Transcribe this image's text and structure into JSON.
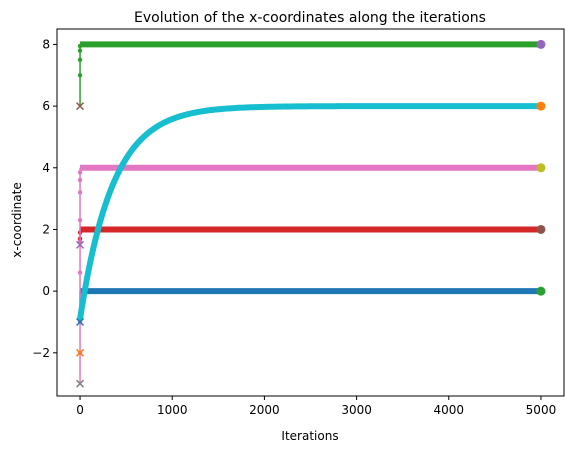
{
  "chart_data": {
    "type": "line",
    "title": "Evolution of the x-coordinates along the iterations",
    "xlabel": "Iterations",
    "ylabel": "x-coordinate",
    "xlim": [
      -250,
      5250
    ],
    "ylim": [
      -3.4,
      8.5
    ],
    "xticks": [
      0,
      1000,
      2000,
      3000,
      4000,
      5000
    ],
    "yticks": [
      -2,
      0,
      2,
      4,
      6,
      8
    ],
    "xtick_labels": [
      "0",
      "1000",
      "2000",
      "3000",
      "4000",
      "5000"
    ],
    "ytick_labels": [
      "−2",
      "0",
      "2",
      "4",
      "6",
      "8"
    ],
    "grid": false,
    "legend": false,
    "series": [
      {
        "color": "#1f77b4",
        "start": -1.0,
        "jump_to": 0.0,
        "final": 0.0,
        "end_color": "#2ca02c"
      },
      {
        "color": "#d62728",
        "start": 1.5,
        "jump_to": 2.0,
        "final": 2.0,
        "end_color": "#8c564b"
      },
      {
        "color": "#e377c2",
        "start": -3.0,
        "jump_to": 4.0,
        "final": 4.0,
        "end_color": "#bcbd22"
      },
      {
        "color": "#2ca02c",
        "start": 6.0,
        "jump_to": 8.0,
        "final": 8.0,
        "end_color": "#9467bd"
      },
      {
        "color": "#17becf",
        "start": -0.9,
        "asymptote": 6.0,
        "rate": 0.0028,
        "final": 6.0,
        "end_color": "#ff7f0e"
      }
    ],
    "start_markers": [
      {
        "y": 6.0,
        "color": "#8c564b"
      },
      {
        "y": 1.5,
        "color": "#9467bd"
      },
      {
        "y": -1.0,
        "color": "#1f77b4"
      },
      {
        "y": -2.0,
        "color": "#ff7f0e"
      },
      {
        "y": -3.0,
        "color": "#7f7f7f"
      }
    ],
    "transient_dots": [
      {
        "color": "#2ca02c",
        "ys": [
          7.0,
          7.5,
          7.8,
          7.95
        ]
      },
      {
        "color": "#e377c2",
        "ys": [
          -2.0,
          -1.0,
          0.6,
          1.6,
          2.3,
          3.2,
          3.6,
          3.85
        ]
      },
      {
        "color": "#d62728",
        "ys": [
          1.7,
          1.9
        ]
      }
    ],
    "x_final": 5000
  }
}
